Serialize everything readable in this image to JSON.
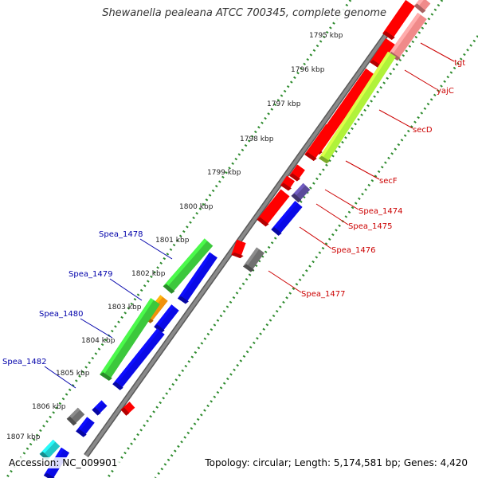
{
  "title": "Shewanella pealeana ATCC 700345, complete genome",
  "accession_text": "Accession: NC_009901",
  "topology_text": "Topology: circular; Length: 5,174,581 bp; Genes: 4,420",
  "colors": {
    "backbone": "#8a8a8a",
    "ruler_dots": "#2e8b2e",
    "tick_label": "#222222",
    "forward_label": "#cc0000",
    "reverse_label": "#0000aa",
    "red_gene": "#ff0000",
    "pink_gene": "#f08a8a",
    "lime_gene": "#b0f23a",
    "green_gene": "#3cc83c",
    "blue_gene": "#0a0ae6",
    "gray_gene": "#707070",
    "purple_gene": "#5a4a9a",
    "orange_gene": "#f0920a",
    "cyan_gene": "#20c8c8"
  },
  "ticks": [
    "1795 kbp",
    "1796 kbp",
    "1797 kbp",
    "1798 kbp",
    "1799 kbp",
    "1800 kbp",
    "1801 kbp",
    "1802 kbp",
    "1803 kbp",
    "1804 kbp",
    "1805 kbp",
    "1806 kbp",
    "1807 kbp"
  ],
  "forward_labels": [
    "tgt",
    "yajC",
    "secD",
    "secF",
    "Spea_1474",
    "Spea_1475",
    "Spea_1476",
    "Spea_1477"
  ],
  "reverse_labels": [
    "Spea_1478",
    "Spea_1479",
    "Spea_1480",
    "Spea_1482"
  ],
  "genes": [
    {
      "name": "forward-gene-red-1",
      "color": "red"
    },
    {
      "name": "forward-gene-pink-1",
      "color": "pink"
    },
    {
      "name": "forward-gene-red-2",
      "color": "red"
    },
    {
      "name": "forward-gene-pink-2",
      "color": "pink"
    },
    {
      "name": "forward-gene-red-3",
      "color": "red"
    },
    {
      "name": "forward-gene-lime",
      "color": "lime"
    },
    {
      "name": "forward-gene-red-4",
      "color": "red"
    },
    {
      "name": "forward-gene-red-5",
      "color": "red"
    },
    {
      "name": "forward-gene-red-6",
      "color": "red"
    },
    {
      "name": "forward-gene-purple",
      "color": "purple"
    },
    {
      "name": "forward-gene-red-7",
      "color": "red"
    },
    {
      "name": "forward-gene-blue-1",
      "color": "blue"
    },
    {
      "name": "forward-gene-red-8",
      "color": "red"
    },
    {
      "name": "forward-gene-gray-1",
      "color": "gray"
    },
    {
      "name": "reverse-gene-green-1",
      "color": "green"
    },
    {
      "name": "reverse-gene-blue-1",
      "color": "blue"
    },
    {
      "name": "reverse-gene-orange",
      "color": "orange"
    },
    {
      "name": "reverse-gene-green-2",
      "color": "green"
    },
    {
      "name": "reverse-gene-blue-2",
      "color": "blue"
    },
    {
      "name": "reverse-gene-blue-3",
      "color": "blue"
    },
    {
      "name": "reverse-gene-red",
      "color": "red"
    },
    {
      "name": "reverse-gene-gray",
      "color": "gray"
    },
    {
      "name": "reverse-gene-blue-4",
      "color": "blue"
    },
    {
      "name": "reverse-gene-blue-5",
      "color": "blue"
    },
    {
      "name": "reverse-gene-cyan",
      "color": "cyan"
    },
    {
      "name": "reverse-gene-blue-6",
      "color": "blue"
    }
  ]
}
